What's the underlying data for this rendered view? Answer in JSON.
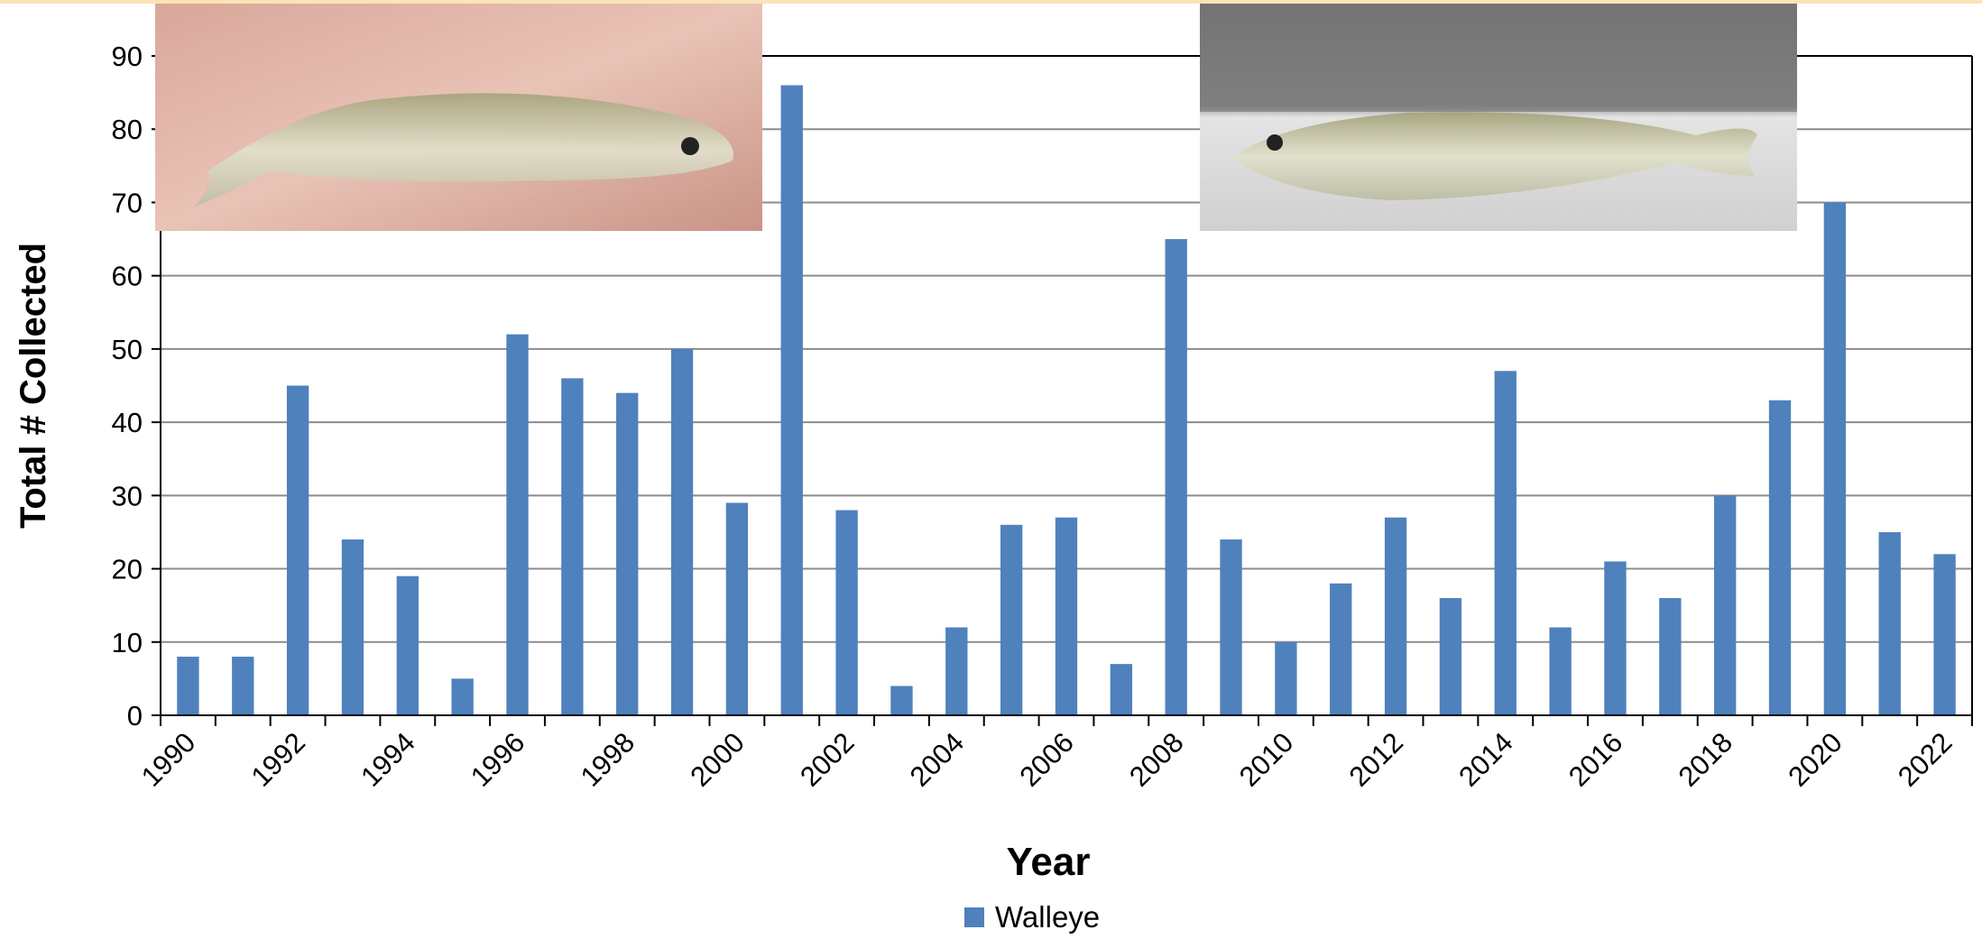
{
  "chart_data": {
    "type": "bar",
    "x_label": "Year",
    "y_label": "Total # Collected",
    "categories": [
      "1990",
      null,
      "1992",
      null,
      "1994",
      null,
      "1996",
      null,
      "1998",
      null,
      "2000",
      null,
      "2002",
      null,
      "2004",
      null,
      "2006",
      null,
      "2008",
      null,
      "2010",
      null,
      "2012",
      null,
      "2014",
      null,
      "2016",
      null,
      "2018",
      null,
      "2020",
      null,
      "2022"
    ],
    "series": [
      {
        "name": "Walleye",
        "color": "#4f81bd",
        "values": [
          8,
          8,
          45,
          24,
          19,
          5,
          52,
          46,
          44,
          50,
          29,
          86,
          28,
          4,
          12,
          26,
          27,
          7,
          65,
          24,
          10,
          18,
          27,
          16,
          47,
          12,
          21,
          16,
          30,
          43,
          70,
          25,
          22
        ]
      }
    ],
    "ylim": [
      0,
      90
    ],
    "yticks": [
      0,
      10,
      20,
      30,
      40,
      50,
      60,
      70,
      80,
      90
    ],
    "grid": true,
    "legend": "bottom"
  }
}
